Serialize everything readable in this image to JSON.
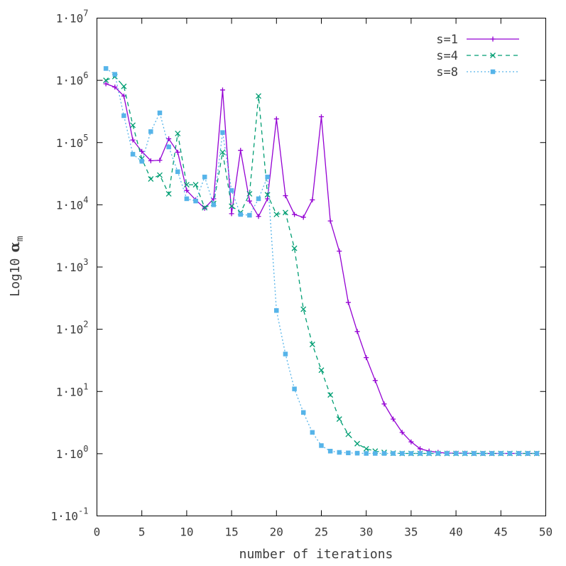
{
  "chart_data": {
    "type": "line",
    "title": "",
    "xlabel": "number of iterations",
    "ylabel_prefix": "Log10",
    "ylabel_symbol": "α",
    "ylabel_sub": "m",
    "y_scale": "log",
    "xlim": [
      0,
      50
    ],
    "ylim_exponent": [
      -1,
      7
    ],
    "x_ticks": [
      0,
      5,
      10,
      15,
      20,
      25,
      30,
      35,
      40,
      45,
      50
    ],
    "y_tick_base": "1·10",
    "y_tick_exponents": [
      -1,
      0,
      1,
      2,
      3,
      4,
      5,
      6,
      7
    ],
    "grid": false,
    "legend_position": "top-right",
    "series": [
      {
        "name": "s=1",
        "color": "#9400d3",
        "marker": "plus",
        "dash": "solid",
        "x": [
          1,
          2,
          3,
          4,
          5,
          6,
          7,
          8,
          9,
          10,
          11,
          12,
          13,
          14,
          15,
          16,
          17,
          18,
          19,
          20,
          21,
          22,
          23,
          24,
          25,
          26,
          27,
          28,
          29,
          30,
          31,
          32,
          33,
          34,
          35,
          36,
          37,
          38,
          39,
          40,
          41,
          42,
          43,
          44,
          45,
          46,
          47,
          48,
          49
        ],
        "y": [
          880000,
          780000,
          560000,
          110000,
          72000,
          51000,
          52000,
          115000,
          70000,
          17000,
          12000,
          8800,
          12500,
          700000,
          7200,
          75000,
          11500,
          6500,
          12500,
          240000,
          14000,
          7000,
          6300,
          12000,
          260000,
          5500,
          1800,
          270,
          92,
          35,
          15,
          6.3,
          3.6,
          2.2,
          1.55,
          1.2,
          1.1,
          1.05,
          1.02,
          1.02,
          1.02,
          1.01,
          1.01,
          1.01,
          1.01,
          1.01,
          1.01,
          1.01,
          1.01
        ]
      },
      {
        "name": "s=4",
        "color": "#009e73",
        "marker": "cross",
        "dash": "dashed",
        "x": [
          1,
          2,
          3,
          4,
          5,
          6,
          7,
          8,
          9,
          10,
          11,
          12,
          13,
          14,
          15,
          16,
          17,
          18,
          19,
          20,
          21,
          22,
          23,
          24,
          25,
          26,
          27,
          28,
          29,
          30,
          31,
          32,
          33,
          34,
          35,
          36,
          37,
          38,
          39,
          40,
          41,
          42,
          43,
          44,
          45,
          46,
          47,
          48,
          49
        ],
        "y": [
          1000000,
          1150000,
          800000,
          190000,
          55000,
          26000,
          30000,
          15000,
          140000,
          21000,
          21000,
          9000,
          10500,
          70000,
          9500,
          7500,
          15000,
          560000,
          14500,
          7000,
          7500,
          2000,
          210,
          57,
          22,
          8.8,
          3.6,
          2.05,
          1.45,
          1.2,
          1.1,
          1.05,
          1.02,
          1.01,
          1.01,
          1.01,
          1.01,
          1.01,
          1.01,
          1.01,
          1.01,
          1.01,
          1.01,
          1.01,
          1.01,
          1.01,
          1.01,
          1.01,
          1.01
        ]
      },
      {
        "name": "s=8",
        "color": "#56b4e9",
        "marker": "square",
        "dash": "dotted",
        "x": [
          1,
          2,
          3,
          4,
          5,
          6,
          7,
          8,
          9,
          10,
          11,
          12,
          13,
          14,
          15,
          16,
          17,
          18,
          19,
          20,
          21,
          22,
          23,
          24,
          25,
          26,
          27,
          28,
          29,
          30,
          31,
          32,
          33,
          34,
          35,
          36,
          37,
          38,
          39,
          40,
          41,
          42,
          43,
          44,
          45,
          46,
          47,
          48,
          49
        ],
        "y": [
          1550000,
          1250000,
          270000,
          65000,
          50000,
          150000,
          300000,
          85000,
          34000,
          12500,
          11500,
          28000,
          10000,
          145000,
          17000,
          7000,
          6800,
          12500,
          28000,
          200,
          40,
          11,
          4.6,
          2.2,
          1.35,
          1.1,
          1.05,
          1.03,
          1.02,
          1.01,
          1.01,
          1.01,
          1.01,
          1.01,
          1.01,
          1.01,
          1.01,
          1.01,
          1.01,
          1.01,
          1.01,
          1.01,
          1.01,
          1.01,
          1.01,
          1.01,
          1.01,
          1.01,
          1.01
        ]
      }
    ]
  }
}
